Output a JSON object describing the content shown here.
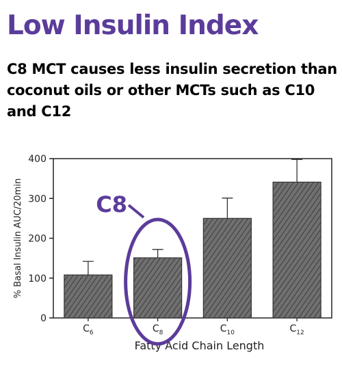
{
  "header": {
    "title": "Low Insulin Index",
    "subtitle": "C8 MCT causes less insulin secretion than coconut oils or other MCTs such as C10 and C12"
  },
  "chart_data": {
    "type": "bar",
    "xlabel": "Fatty Acid Chain Length",
    "ylabel": "% Basal Insulin AUC/20min",
    "ylim": [
      0,
      400
    ],
    "yticks": [
      0,
      100,
      200,
      300,
      400
    ],
    "categories": [
      {
        "base": "C",
        "sub": "6"
      },
      {
        "base": "C",
        "sub": "8"
      },
      {
        "base": "C",
        "sub": "10"
      },
      {
        "base": "C",
        "sub": "12"
      }
    ],
    "values": [
      108,
      151,
      250,
      341
    ],
    "error_upper": [
      142,
      172,
      301,
      398
    ],
    "annotation": {
      "label": "C8",
      "target_index": 1,
      "color": "#5b3c9a"
    },
    "colors": {
      "bar": "#6e6e6e",
      "frame": "#222222",
      "accent": "#5b3c9a"
    }
  }
}
